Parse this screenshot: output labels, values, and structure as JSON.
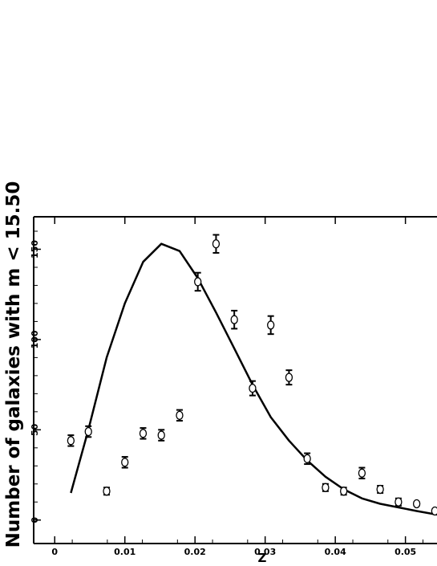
{
  "chart_data": {
    "type": "scatter",
    "xlabel": "Z",
    "ylabel": "Number of galaxies with  m < 15.50",
    "xlim": [
      -0.003,
      0.0545
    ],
    "ylim": [
      -13,
      168
    ],
    "x_ticks": [
      0,
      0.01,
      0.02,
      0.03,
      0.04,
      0.05
    ],
    "x_tick_labels": [
      "0",
      "0.01",
      "0.02",
      "0.03",
      "0.04",
      "0.05"
    ],
    "y_ticks": [
      0,
      50,
      100,
      150
    ],
    "y_tick_labels": [
      "0",
      "50",
      "100",
      "150"
    ],
    "grid": false,
    "series": [
      {
        "kind": "points_with_errorbars",
        "points": [
          {
            "x": 0.0023,
            "y": 44,
            "err": 3
          },
          {
            "x": 0.0048,
            "y": 49,
            "err": 3
          },
          {
            "x": 0.0074,
            "y": 16,
            "err": 2
          },
          {
            "x": 0.01,
            "y": 32,
            "err": 3
          },
          {
            "x": 0.0126,
            "y": 48,
            "err": 3
          },
          {
            "x": 0.0152,
            "y": 47,
            "err": 3
          },
          {
            "x": 0.0178,
            "y": 58,
            "err": 3
          },
          {
            "x": 0.0204,
            "y": 132,
            "err": 5
          },
          {
            "x": 0.023,
            "y": 153,
            "err": 5
          },
          {
            "x": 0.0256,
            "y": 111,
            "err": 5
          },
          {
            "x": 0.0282,
            "y": 73,
            "err": 4
          },
          {
            "x": 0.0308,
            "y": 108,
            "err": 5
          },
          {
            "x": 0.0334,
            "y": 79,
            "err": 4
          },
          {
            "x": 0.036,
            "y": 34,
            "err": 3
          },
          {
            "x": 0.0386,
            "y": 18,
            "err": 2
          },
          {
            "x": 0.0412,
            "y": 16,
            "err": 2
          },
          {
            "x": 0.0438,
            "y": 26,
            "err": 3
          },
          {
            "x": 0.0464,
            "y": 17,
            "err": 2
          },
          {
            "x": 0.049,
            "y": 10,
            "err": 2
          },
          {
            "x": 0.0516,
            "y": 9,
            "err": 1
          },
          {
            "x": 0.0542,
            "y": 5,
            "err": 1
          }
        ]
      },
      {
        "kind": "line",
        "x": [
          0.0023,
          0.0048,
          0.0074,
          0.01,
          0.0126,
          0.0152,
          0.0178,
          0.0204,
          0.023,
          0.0256,
          0.0282,
          0.0308,
          0.0334,
          0.036,
          0.0386,
          0.0412,
          0.0438,
          0.0464,
          0.049,
          0.0516,
          0.0545
        ],
        "y": [
          15,
          50,
          90,
          120,
          143,
          153,
          149,
          134,
          115,
          95,
          75,
          57,
          44,
          33,
          24,
          17,
          12,
          9,
          7,
          5,
          3
        ]
      }
    ]
  }
}
